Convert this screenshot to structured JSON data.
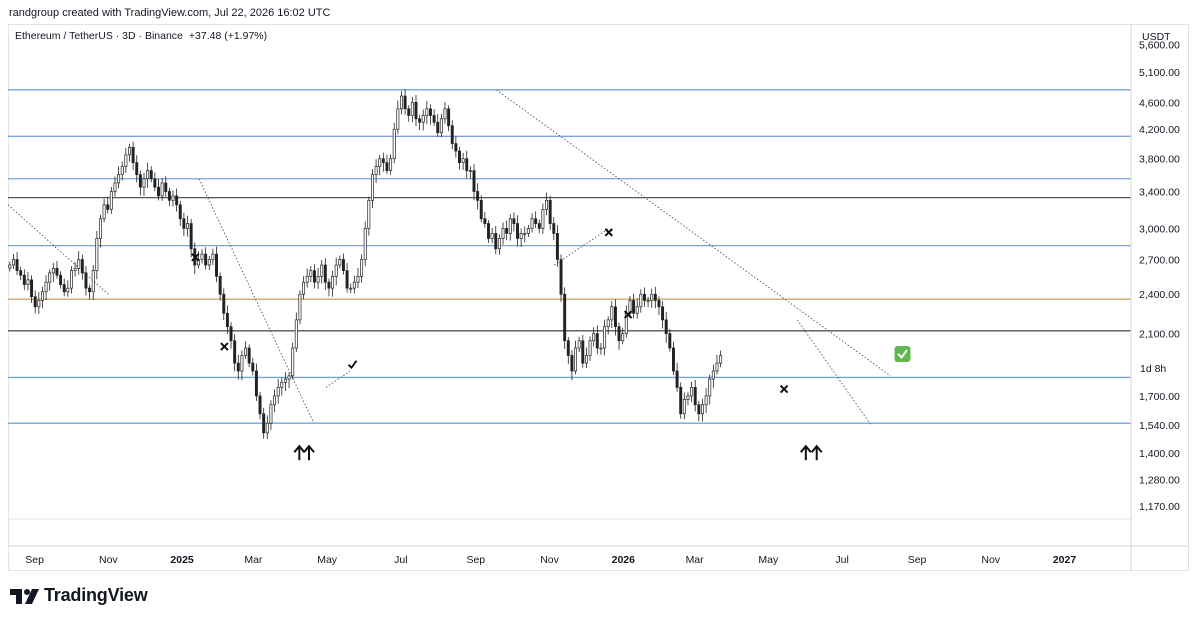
{
  "header": {
    "credit": "randgroup created with TradingView.com, Jul 22, 2026 16:02 UTC"
  },
  "chart_data": {
    "type": "candlestick",
    "title": "Ethereum / TetherUS · 3D · Binance",
    "change_text": "+37.48 (+1.97%)",
    "currency": "USDT",
    "countdown": "1d 8h",
    "y_scale": "log",
    "ylim": [
      1120,
      6000
    ],
    "xlim": [
      "2024-08-10",
      "2027-02-25"
    ],
    "yticks": [
      1170,
      1280,
      1400,
      1540,
      1700,
      1900,
      2100,
      2400,
      2700,
      3000,
      3400,
      3800,
      4200,
      4600,
      5100,
      5600
    ],
    "ytick_labels": [
      "1,170.00",
      "1,280.00",
      "1,400.00",
      "1,540.00",
      "1,700.00",
      "",
      "2,100.00",
      "2,400.00",
      "2,700.00",
      "3,000.00",
      "3,400.00",
      "3,800.00",
      "4,200.00",
      "4,600.00",
      "5,100.00",
      "5,600.00"
    ],
    "xticks": [
      {
        "date": "2024-09-01",
        "label": "Sep"
      },
      {
        "date": "2024-11-01",
        "label": "Nov"
      },
      {
        "date": "2025-01-01",
        "label": "2025",
        "bold": true
      },
      {
        "date": "2025-03-01",
        "label": "Mar"
      },
      {
        "date": "2025-05-01",
        "label": "May"
      },
      {
        "date": "2025-07-01",
        "label": "Jul"
      },
      {
        "date": "2025-09-01",
        "label": "Sep"
      },
      {
        "date": "2025-11-01",
        "label": "Nov"
      },
      {
        "date": "2026-01-01",
        "label": "2026",
        "bold": true
      },
      {
        "date": "2026-03-01",
        "label": "Mar"
      },
      {
        "date": "2026-05-01",
        "label": "May"
      },
      {
        "date": "2026-07-01",
        "label": "Jul"
      },
      {
        "date": "2026-09-01",
        "label": "Sep"
      },
      {
        "date": "2026-11-01",
        "label": "Nov"
      },
      {
        "date": "2027-01-01",
        "label": "2027",
        "bold": true
      }
    ],
    "series": [
      {
        "start_date": "2024-08-10",
        "interval_days": 3,
        "close": [
          2650,
          2700,
          2600,
          2560,
          2480,
          2520,
          2380,
          2300,
          2350,
          2420,
          2500,
          2580,
          2620,
          2560,
          2480,
          2420,
          2450,
          2600,
          2620,
          2700,
          2580,
          2450,
          2420,
          2600,
          2900,
          3100,
          3250,
          3200,
          3400,
          3500,
          3600,
          3700,
          3850,
          3950,
          3750,
          3600,
          3450,
          3550,
          3650,
          3550,
          3450,
          3350,
          3500,
          3400,
          3300,
          3350,
          3250,
          3100,
          3000,
          3050,
          2800,
          2650,
          2700,
          2750,
          2650,
          2700,
          2750,
          2550,
          2400,
          2250,
          2150,
          2050,
          1900,
          1850,
          1950,
          2000,
          1900,
          1850,
          1700,
          1600,
          1500,
          1550,
          1650,
          1700,
          1750,
          1780,
          1800,
          1820,
          2000,
          2200,
          2400,
          2500,
          2550,
          2600,
          2500,
          2550,
          2650,
          2500,
          2450,
          2550,
          2650,
          2700,
          2600,
          2450,
          2450,
          2500,
          2550,
          2700,
          3000,
          3300,
          3600,
          3700,
          3800,
          3750,
          3650,
          3800,
          4200,
          4500,
          4700,
          4500,
          4400,
          4600,
          4350,
          4300,
          4400,
          4500,
          4400,
          4300,
          4150,
          4350,
          4500,
          4250,
          4000,
          3900,
          3750,
          3800,
          3650,
          3650,
          3400,
          3300,
          3100,
          3050,
          2900,
          2950,
          2800,
          2900,
          3000,
          2950,
          3100,
          3050,
          2900,
          2950,
          2950,
          3000,
          3100,
          3050,
          3000,
          3200,
          3300,
          3050,
          2950,
          2700,
          2400,
          2050,
          1950,
          1850,
          2000,
          2050,
          1900,
          1950,
          2050,
          2100,
          2000,
          2000,
          2150,
          2200,
          2300,
          2150,
          2050,
          2100,
          2250,
          2350,
          2250,
          2300,
          2400,
          2350,
          2350,
          2400,
          2350,
          2300,
          2200,
          2100,
          2000,
          1850,
          1750,
          1600,
          1680,
          1700,
          1750,
          1650,
          1600,
          1650,
          1700,
          1800,
          1850,
          1900,
          1950
        ]
      }
    ],
    "horizontal_levels": [
      {
        "price": 4800,
        "color": "#7aa3d6"
      },
      {
        "price": 4100,
        "color": "#7aa3d6"
      },
      {
        "price": 3550,
        "color": "#7aa3d6"
      },
      {
        "price": 3330,
        "color": "#555555"
      },
      {
        "price": 2830,
        "color": "#7aa3d6"
      },
      {
        "price": 2360,
        "color": "#c9a86a"
      },
      {
        "price": 2120,
        "color": "#555555"
      },
      {
        "price": 1810,
        "color": "#7aa3d6"
      },
      {
        "price": 1550,
        "color": "#7aa3d6"
      }
    ],
    "trendlines": [
      {
        "from": [
          "2024-08-10",
          3250
        ],
        "to": [
          "2024-11-01",
          2400
        ]
      },
      {
        "from": [
          "2025-01-15",
          3550
        ],
        "to": [
          "2025-04-20",
          1550
        ]
      },
      {
        "from": [
          "2025-04-30",
          1750
        ],
        "to": [
          "2025-05-20",
          1850
        ]
      },
      {
        "from": [
          "2025-09-18",
          4800
        ],
        "to": [
          "2026-08-10",
          1820
        ]
      },
      {
        "from": [
          "2025-11-05",
          2650
        ],
        "to": [
          "2025-12-20",
          3000
        ]
      },
      {
        "from": [
          "2026-05-25",
          2200
        ],
        "to": [
          "2026-07-25",
          1540
        ]
      }
    ],
    "markers": [
      {
        "type": "x",
        "date": "2025-01-12",
        "price": 2720
      },
      {
        "type": "x",
        "date": "2025-02-05",
        "price": 2010
      },
      {
        "type": "check",
        "date": "2025-05-22",
        "price": 1890
      },
      {
        "type": "up-arrow",
        "date": "2025-04-08",
        "price": 1400
      },
      {
        "type": "up-arrow",
        "date": "2025-04-16",
        "price": 1400
      },
      {
        "type": "x",
        "date": "2025-12-20",
        "price": 2960
      },
      {
        "type": "x",
        "date": "2026-01-05",
        "price": 2240
      },
      {
        "type": "x",
        "date": "2026-05-14",
        "price": 1740
      },
      {
        "type": "up-arrow",
        "date": "2026-06-01",
        "price": 1400
      },
      {
        "type": "up-arrow",
        "date": "2026-06-10",
        "price": 1400
      },
      {
        "type": "check-badge",
        "date": "2026-08-20",
        "price": 1960
      }
    ]
  },
  "footer": {
    "logo_text": "TradingView"
  }
}
